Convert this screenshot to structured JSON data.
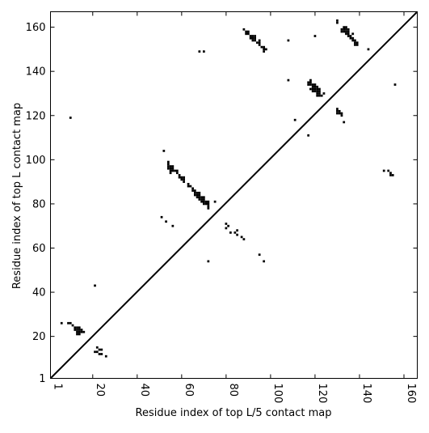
{
  "chart_data": {
    "type": "scatter",
    "marker": "square",
    "color": "#000000",
    "xlabel": "Residue index of top L/5 contact map",
    "ylabel": "Residue index of top L contact map",
    "xlim": [
      1,
      166
    ],
    "ylim": [
      1,
      167
    ],
    "xticks": [
      1,
      20,
      40,
      60,
      80,
      100,
      120,
      140,
      160
    ],
    "yticks": [
      1,
      20,
      40,
      60,
      80,
      100,
      120,
      140,
      160
    ],
    "grid": false,
    "legend": "none",
    "diagonal": {
      "from": [
        1,
        1
      ],
      "to": [
        166,
        167
      ],
      "style": "solid black line"
    },
    "points": [
      [
        10,
        119
      ],
      [
        21,
        43
      ],
      [
        6,
        26
      ],
      [
        9,
        26
      ],
      [
        10,
        26
      ],
      [
        11,
        25
      ],
      [
        12,
        24
      ],
      [
        13,
        24
      ],
      [
        14,
        24
      ],
      [
        12,
        23
      ],
      [
        13,
        23
      ],
      [
        14,
        23
      ],
      [
        15,
        23
      ],
      [
        13,
        22
      ],
      [
        14,
        22
      ],
      [
        15,
        22
      ],
      [
        16,
        22
      ],
      [
        13,
        21
      ],
      [
        14,
        21
      ],
      [
        21,
        13
      ],
      [
        22,
        15
      ],
      [
        22,
        13
      ],
      [
        23,
        14
      ],
      [
        23,
        12
      ],
      [
        24,
        14
      ],
      [
        24,
        12
      ],
      [
        26,
        11
      ],
      [
        52,
        104
      ],
      [
        54,
        99
      ],
      [
        54,
        98
      ],
      [
        54,
        97
      ],
      [
        55,
        97
      ],
      [
        56,
        97
      ],
      [
        54,
        96
      ],
      [
        55,
        96
      ],
      [
        56,
        96
      ],
      [
        55,
        95
      ],
      [
        56,
        95
      ],
      [
        57,
        95
      ],
      [
        58,
        95
      ],
      [
        55,
        94
      ],
      [
        58,
        94
      ],
      [
        59,
        93
      ],
      [
        60,
        92
      ],
      [
        59,
        92
      ],
      [
        61,
        92
      ],
      [
        60,
        91
      ],
      [
        61,
        91
      ],
      [
        61,
        90
      ],
      [
        63,
        89
      ],
      [
        63,
        88
      ],
      [
        64,
        88
      ],
      [
        65,
        87
      ],
      [
        65,
        86
      ],
      [
        66,
        86
      ],
      [
        66,
        85
      ],
      [
        67,
        85
      ],
      [
        68,
        85
      ],
      [
        66,
        84
      ],
      [
        67,
        84
      ],
      [
        68,
        84
      ],
      [
        67,
        83
      ],
      [
        68,
        83
      ],
      [
        69,
        83
      ],
      [
        70,
        83
      ],
      [
        68,
        82
      ],
      [
        69,
        82
      ],
      [
        70,
        82
      ],
      [
        69,
        81
      ],
      [
        70,
        81
      ],
      [
        71,
        81
      ],
      [
        72,
        81
      ],
      [
        70,
        80
      ],
      [
        71,
        80
      ],
      [
        72,
        80
      ],
      [
        72,
        79
      ],
      [
        72,
        78
      ],
      [
        75,
        81
      ],
      [
        51,
        74
      ],
      [
        53,
        72
      ],
      [
        56,
        70
      ],
      [
        72,
        54
      ],
      [
        80,
        71
      ],
      [
        81,
        70
      ],
      [
        80,
        69
      ],
      [
        82,
        67
      ],
      [
        84,
        67
      ],
      [
        85,
        68
      ],
      [
        85,
        66
      ],
      [
        87,
        65
      ],
      [
        88,
        64
      ],
      [
        95,
        57
      ],
      [
        97,
        54
      ],
      [
        88,
        159
      ],
      [
        89,
        158
      ],
      [
        90,
        158
      ],
      [
        89,
        157
      ],
      [
        90,
        157
      ],
      [
        91,
        156
      ],
      [
        92,
        156
      ],
      [
        93,
        156
      ],
      [
        91,
        155
      ],
      [
        92,
        155
      ],
      [
        93,
        155
      ],
      [
        92,
        154
      ],
      [
        93,
        154
      ],
      [
        95,
        154
      ],
      [
        94,
        153
      ],
      [
        95,
        153
      ],
      [
        95,
        152
      ],
      [
        96,
        151
      ],
      [
        97,
        151
      ],
      [
        97,
        150
      ],
      [
        98,
        150
      ],
      [
        97,
        149
      ],
      [
        68,
        149
      ],
      [
        70,
        149
      ],
      [
        108,
        154
      ],
      [
        120,
        156
      ],
      [
        108,
        136
      ],
      [
        111,
        118
      ],
      [
        117,
        111
      ],
      [
        118,
        136
      ],
      [
        117,
        135
      ],
      [
        118,
        135
      ],
      [
        117,
        134
      ],
      [
        118,
        134
      ],
      [
        119,
        134
      ],
      [
        120,
        134
      ],
      [
        119,
        133
      ],
      [
        120,
        133
      ],
      [
        121,
        133
      ],
      [
        118,
        132
      ],
      [
        119,
        132
      ],
      [
        120,
        132
      ],
      [
        121,
        132
      ],
      [
        122,
        132
      ],
      [
        119,
        131
      ],
      [
        120,
        131
      ],
      [
        121,
        131
      ],
      [
        122,
        131
      ],
      [
        121,
        130
      ],
      [
        122,
        130
      ],
      [
        121,
        129
      ],
      [
        122,
        129
      ],
      [
        123,
        129
      ],
      [
        124,
        130
      ],
      [
        130,
        163
      ],
      [
        130,
        162
      ],
      [
        133,
        160
      ],
      [
        134,
        160
      ],
      [
        132,
        159
      ],
      [
        133,
        159
      ],
      [
        134,
        159
      ],
      [
        135,
        159
      ],
      [
        132,
        158
      ],
      [
        133,
        158
      ],
      [
        134,
        158
      ],
      [
        135,
        158
      ],
      [
        134,
        157
      ],
      [
        135,
        157
      ],
      [
        137,
        157
      ],
      [
        135,
        156
      ],
      [
        136,
        156
      ],
      [
        136,
        155
      ],
      [
        137,
        155
      ],
      [
        138,
        154
      ],
      [
        137,
        154
      ],
      [
        138,
        153
      ],
      [
        139,
        153
      ],
      [
        139,
        152
      ],
      [
        138,
        152
      ],
      [
        144,
        150
      ],
      [
        156,
        134
      ],
      [
        130,
        123
      ],
      [
        130,
        122
      ],
      [
        131,
        122
      ],
      [
        130,
        121
      ],
      [
        131,
        121
      ],
      [
        132,
        121
      ],
      [
        132,
        120
      ],
      [
        133,
        117
      ],
      [
        151,
        95
      ],
      [
        153,
        95
      ],
      [
        154,
        94
      ],
      [
        154,
        93
      ],
      [
        155,
        93
      ]
    ]
  }
}
